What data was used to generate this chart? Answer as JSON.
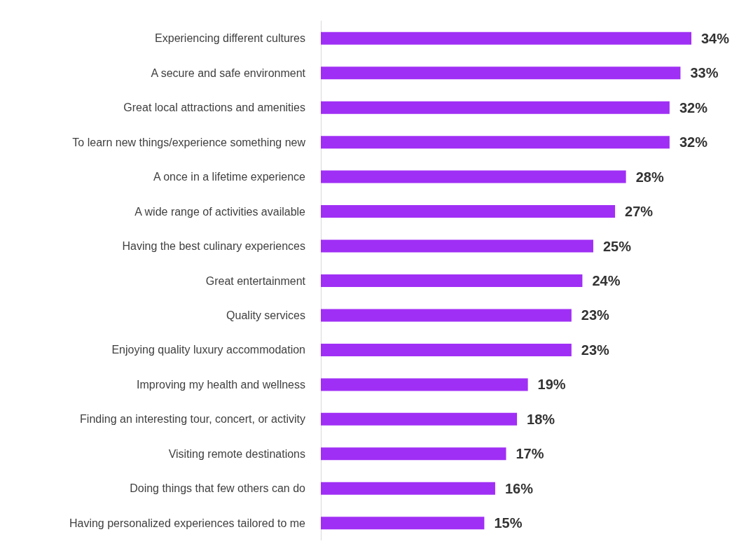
{
  "chart_data": {
    "type": "bar",
    "orientation": "horizontal",
    "color": "#a02ff5",
    "value_labels": [
      "34%",
      "33%",
      "32%",
      "32%",
      "28%",
      "27%",
      "25%",
      "24%",
      "23%",
      "23%",
      "19%",
      "18%",
      "17%",
      "16%",
      "15%"
    ],
    "categories": [
      "Experiencing different cultures",
      "A secure and safe environment",
      "Great local attractions and amenities",
      "To learn new things/experience something new",
      "A once in a lifetime experience",
      "A wide range of activities available",
      "Having the best culinary experiences",
      "Great entertainment",
      "Quality services",
      "Enjoying quality luxury accommodation",
      "Improving my health and wellness",
      "Finding an interesting tour, concert, or activity",
      "Visiting remote destinations",
      "Doing things that few others can do",
      "Having personalized experiences tailored to me"
    ],
    "values": [
      34,
      33,
      32,
      32,
      28,
      27,
      25,
      24,
      23,
      23,
      19,
      18,
      17,
      16,
      15
    ]
  }
}
